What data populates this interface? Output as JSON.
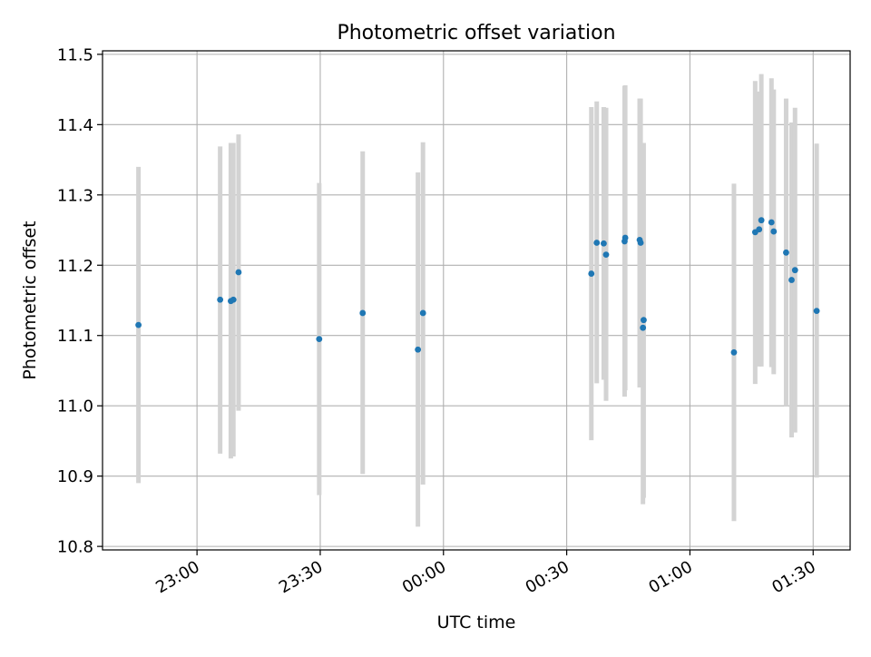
{
  "chart_data": {
    "type": "scatter",
    "title": "Photometric offset variation",
    "xlabel": "UTC time",
    "ylabel": "Photometric offset",
    "grid": true,
    "xlim": [
      "22:37",
      "01:39"
    ],
    "ylim": [
      10.795,
      11.505
    ],
    "x_ticks": [
      {
        "t": "23:00",
        "label": "23:00"
      },
      {
        "t": "23:30",
        "label": "23:30"
      },
      {
        "t": "00:00",
        "label": "00:00"
      },
      {
        "t": "00:30",
        "label": "00:30"
      },
      {
        "t": "01:00",
        "label": "01:00"
      },
      {
        "t": "01:30",
        "label": "01:30"
      }
    ],
    "y_ticks": [
      {
        "v": 10.8,
        "label": "10.8"
      },
      {
        "v": 10.9,
        "label": "10.9"
      },
      {
        "v": 11.0,
        "label": "11.0"
      },
      {
        "v": 11.1,
        "label": "11.1"
      },
      {
        "v": 11.2,
        "label": "11.2"
      },
      {
        "v": 11.3,
        "label": "11.3"
      },
      {
        "v": 11.4,
        "label": "11.4"
      },
      {
        "v": 11.5,
        "label": "11.5"
      }
    ],
    "point_color": "#1f77b4",
    "errorbar_color": "#d3d3d3",
    "points": [
      {
        "t": "22:45:45",
        "y": 11.115,
        "lo": 10.89,
        "hi": 11.34
      },
      {
        "t": "23:05:38",
        "y": 11.151,
        "lo": 10.932,
        "hi": 11.369
      },
      {
        "t": "23:08:14",
        "y": 11.149,
        "lo": 10.925,
        "hi": 11.374
      },
      {
        "t": "23:08:51",
        "y": 11.151,
        "lo": 10.928,
        "hi": 11.374
      },
      {
        "t": "23:10:07",
        "y": 11.19,
        "lo": 10.993,
        "hi": 11.386
      },
      {
        "t": "23:29:45",
        "y": 11.095,
        "lo": 10.873,
        "hi": 11.317
      },
      {
        "t": "23:40:20",
        "y": 11.132,
        "lo": 10.903,
        "hi": 11.362
      },
      {
        "t": "23:53:47",
        "y": 11.08,
        "lo": 10.828,
        "hi": 11.332
      },
      {
        "t": "23:55:01",
        "y": 11.132,
        "lo": 10.888,
        "hi": 11.375
      },
      {
        "t": "00:36:00",
        "y": 11.188,
        "lo": 10.951,
        "hi": 11.425
      },
      {
        "t": "00:37:19",
        "y": 11.232,
        "lo": 11.032,
        "hi": 11.433
      },
      {
        "t": "00:39:01",
        "y": 11.231,
        "lo": 11.037,
        "hi": 11.425
      },
      {
        "t": "00:39:35",
        "y": 11.215,
        "lo": 11.007,
        "hi": 11.424
      },
      {
        "t": "00:44:06",
        "y": 11.234,
        "lo": 11.013,
        "hi": 11.455
      },
      {
        "t": "00:44:15",
        "y": 11.239,
        "lo": 11.022,
        "hi": 11.456
      },
      {
        "t": "00:47:46",
        "y": 11.236,
        "lo": 11.026,
        "hi": 11.437
      },
      {
        "t": "00:48:00",
        "y": 11.232,
        "lo": 11.026,
        "hi": 11.437
      },
      {
        "t": "00:48:44",
        "y": 11.122,
        "lo": 10.869,
        "hi": 11.374
      },
      {
        "t": "00:48:34",
        "y": 11.111,
        "lo": 10.86,
        "hi": 11.366
      },
      {
        "t": "01:10:43",
        "y": 11.076,
        "lo": 10.836,
        "hi": 11.316
      },
      {
        "t": "01:15:53",
        "y": 11.247,
        "lo": 11.031,
        "hi": 11.462
      },
      {
        "t": "01:16:51",
        "y": 11.251,
        "lo": 11.056,
        "hi": 11.447
      },
      {
        "t": "01:17:23",
        "y": 11.264,
        "lo": 11.056,
        "hi": 11.472
      },
      {
        "t": "01:19:51",
        "y": 11.261,
        "lo": 11.055,
        "hi": 11.466
      },
      {
        "t": "01:20:24",
        "y": 11.248,
        "lo": 11.045,
        "hi": 11.45
      },
      {
        "t": "01:23:25",
        "y": 11.218,
        "lo": 11.0,
        "hi": 11.437
      },
      {
        "t": "01:24:45",
        "y": 11.179,
        "lo": 10.955,
        "hi": 11.403
      },
      {
        "t": "01:25:35",
        "y": 11.193,
        "lo": 10.962,
        "hi": 11.424
      },
      {
        "t": "01:30:51",
        "y": 11.135,
        "lo": 10.898,
        "hi": 11.373
      }
    ]
  }
}
